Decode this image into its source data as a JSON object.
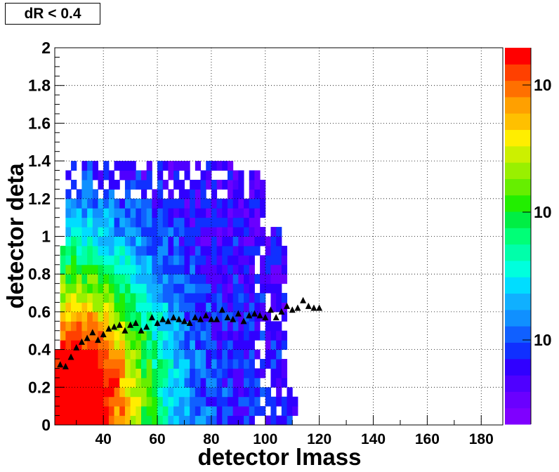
{
  "chart_data": {
    "type": "heatmap",
    "title": "dR < 0.4",
    "xlabel": "detector lmass",
    "ylabel": "detector deta",
    "xlim": [
      22,
      188
    ],
    "ylim": [
      0,
      2
    ],
    "x_ticks": [
      "40",
      "60",
      "80",
      "100",
      "120",
      "140",
      "160",
      "180"
    ],
    "y_ticks": [
      "0",
      "0.2",
      "0.4",
      "0.6",
      "0.8",
      "1",
      "1.2",
      "1.4",
      "1.6",
      "1.8",
      "2"
    ],
    "grid": true,
    "colorbar": {
      "scale": "log",
      "tick_labels": [
        "10",
        "10",
        "10"
      ],
      "colors": [
        "#7f00ff",
        "#6a00ff",
        "#4f00ff",
        "#3000ff",
        "#1030ff",
        "#1060ff",
        "#1090ff",
        "#10b0ff",
        "#00ddff",
        "#00ffdd",
        "#00ffaa",
        "#00ff77",
        "#00ee44",
        "#22ee00",
        "#66ee00",
        "#99f000",
        "#ccf000",
        "#ffee00",
        "#ffc000",
        "#ffa000",
        "#ff7000",
        "#ff4000",
        "#ff0000"
      ]
    },
    "heatmap_extent": {
      "x_min": 22,
      "x_max": 122,
      "y_min": 0,
      "y_max": 1.4
    },
    "profile_series": {
      "name": "",
      "marker": "triangle",
      "x": [
        24,
        26,
        28,
        30,
        32,
        34,
        36,
        38,
        40,
        42,
        44,
        46,
        48,
        50,
        52,
        54,
        56,
        58,
        60,
        62,
        64,
        66,
        68,
        70,
        72,
        74,
        76,
        78,
        80,
        82,
        84,
        86,
        88,
        90,
        92,
        94,
        96,
        98,
        100,
        102,
        104,
        106,
        108,
        110,
        112,
        114,
        116,
        118,
        120
      ],
      "y": [
        0.32,
        0.31,
        0.36,
        0.41,
        0.44,
        0.46,
        0.49,
        0.45,
        0.48,
        0.51,
        0.52,
        0.53,
        0.5,
        0.53,
        0.54,
        0.5,
        0.52,
        0.57,
        0.54,
        0.56,
        0.55,
        0.57,
        0.56,
        0.55,
        0.54,
        0.57,
        0.56,
        0.58,
        0.56,
        0.56,
        0.61,
        0.57,
        0.56,
        0.59,
        0.55,
        0.58,
        0.59,
        0.58,
        0.57,
        0.61,
        0.57,
        0.6,
        0.63,
        0.61,
        0.62,
        0.66,
        0.63,
        0.62,
        0.62
      ]
    }
  }
}
